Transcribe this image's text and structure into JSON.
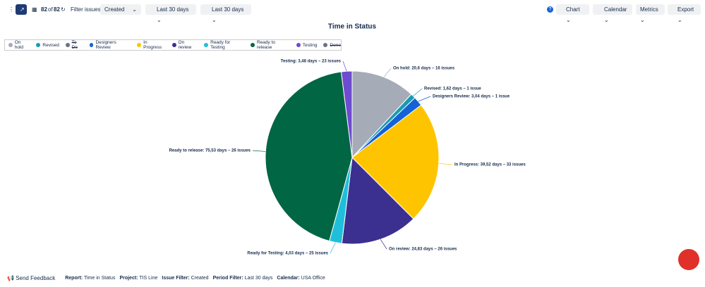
{
  "toolbar": {
    "count": "82",
    "of": "of",
    "total": "82",
    "filter_label": "Filter issues:",
    "filter_value": "Created",
    "date_range_1": "Last 30 days",
    "date_range_2": "Last 30 days",
    "chart": "Chart",
    "calendar": "Calendar",
    "metrics": "Metrics",
    "export": "Export"
  },
  "chart_data": {
    "type": "pie",
    "title": "Time in Status",
    "categories": [
      "On hold",
      "Revised",
      "To Do",
      "Designers Review",
      "In Progress",
      "On review",
      "Ready for Testing",
      "Ready to release",
      "Testing",
      "Done"
    ],
    "values": [
      20.6,
      1.62,
      null,
      3.04,
      39.52,
      24.83,
      4.03,
      75.53,
      3.48,
      null
    ],
    "value_labels": [
      "On hold: 20,6 days – 16 issues",
      "Revised: 1,62 days – 1 issue",
      null,
      "Designers Review: 3,04 days – 1 issue",
      "In Progress: 39,52 days – 33 issues",
      "On review: 24,83 days – 26 issues",
      "Ready for Testing: 4,03 days – 25 issues",
      "Ready to release: 75,53 days – 26 issues",
      "Testing: 3,48 days – 23 issues",
      null
    ],
    "colors": [
      "#a5acb7",
      "#1a9bb0",
      "#6b7280",
      "#1463d6",
      "#ffc400",
      "#3b2f8f",
      "#1fbfdb",
      "#006644",
      "#6e4bd0",
      "#6b7280"
    ],
    "hidden": [
      false,
      false,
      true,
      false,
      false,
      false,
      false,
      false,
      false,
      true
    ]
  },
  "footer": {
    "feedback": "Send Feedback",
    "items": [
      {
        "label": "Report:",
        "value": "Time in Status"
      },
      {
        "label": "Project:",
        "value": "TIS Line"
      },
      {
        "label": "Issue Filter:",
        "value": "Created"
      },
      {
        "label": "Period Filter:",
        "value": "Last 30 days"
      },
      {
        "label": "Calendar:",
        "value": "USA Office"
      }
    ]
  }
}
